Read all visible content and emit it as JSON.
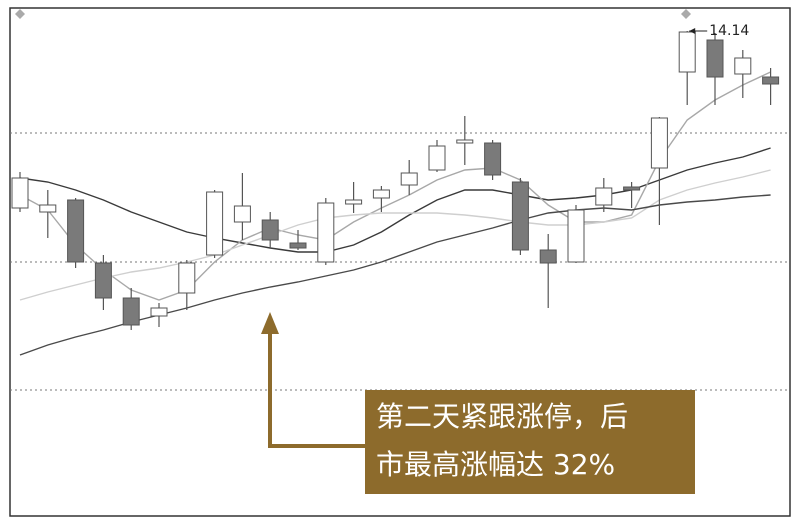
{
  "chart_data": {
    "type": "candlestick",
    "open": [
      10.6,
      10.52,
      10.76,
      9.5,
      8.8,
      8.44,
      8.9,
      9.66,
      10.32,
      10.36,
      9.9,
      9.52,
      10.68,
      10.8,
      11.06,
      11.36,
      11.9,
      11.9,
      11.12,
      9.76,
      9.52,
      10.66,
      11.02,
      11.4,
      13.32,
      13.96,
      13.28,
      13.22
    ],
    "high": [
      11.32,
      10.96,
      10.8,
      9.66,
      9.0,
      8.7,
      9.56,
      10.96,
      11.3,
      10.52,
      10.16,
      10.8,
      11.12,
      11.04,
      11.56,
      11.96,
      12.44,
      11.96,
      11.2,
      10.08,
      10.66,
      11.2,
      11.12,
      12.42,
      14.14,
      14.1,
      13.76,
      13.4
    ],
    "low": [
      10.52,
      10.0,
      9.4,
      8.56,
      8.16,
      8.22,
      8.56,
      9.6,
      9.96,
      9.8,
      9.76,
      9.46,
      10.5,
      10.52,
      10.86,
      11.32,
      11.46,
      11.16,
      9.66,
      8.6,
      9.5,
      10.52,
      10.6,
      10.26,
      12.66,
      12.66,
      12.8,
      12.66
    ],
    "close": [
      11.2,
      10.66,
      9.52,
      8.8,
      8.26,
      8.6,
      9.5,
      10.92,
      10.64,
      9.96,
      9.8,
      10.7,
      10.76,
      10.96,
      11.3,
      11.84,
      11.96,
      11.26,
      9.76,
      9.5,
      10.56,
      11.0,
      10.96,
      12.4,
      14.12,
      13.22,
      13.6,
      13.08
    ],
    "up_color": "#ffffff",
    "down_color": "#7a7a7a",
    "edge_color": "#555555",
    "lines": [
      {
        "color": "#3a3a3a",
        "values": [
          11.2,
          11.12,
          10.96,
          10.76,
          10.52,
          10.32,
          10.12,
          10.0,
          9.9,
          9.8,
          9.72,
          9.72,
          9.86,
          10.12,
          10.46,
          10.76,
          10.96,
          10.96,
          10.86,
          10.76,
          10.8,
          10.86,
          10.96,
          11.16,
          11.36,
          11.5,
          11.62,
          11.8
        ]
      },
      {
        "color": "#a8a8a8",
        "values": [
          10.86,
          10.56,
          9.86,
          9.36,
          8.96,
          8.76,
          8.96,
          9.52,
          9.96,
          10.2,
          10.06,
          9.96,
          10.32,
          10.6,
          10.86,
          11.16,
          11.36,
          11.4,
          11.16,
          10.66,
          10.32,
          10.32,
          10.46,
          11.56,
          12.36,
          12.76,
          13.06,
          13.32
        ]
      },
      {
        "color": "#cfcfcf",
        "values": [
          8.76,
          8.92,
          9.06,
          9.2,
          9.32,
          9.4,
          9.52,
          9.66,
          9.86,
          10.06,
          10.26,
          10.4,
          10.46,
          10.5,
          10.5,
          10.5,
          10.46,
          10.4,
          10.32,
          10.26,
          10.26,
          10.32,
          10.4,
          10.76,
          10.96,
          11.1,
          11.22,
          11.36
        ]
      },
      {
        "color": "#4a4a4a",
        "values": [
          7.66,
          7.86,
          8.02,
          8.16,
          8.32,
          8.46,
          8.6,
          8.76,
          8.9,
          9.02,
          9.12,
          9.24,
          9.36,
          9.52,
          9.72,
          9.92,
          10.06,
          10.2,
          10.36,
          10.5,
          10.56,
          10.6,
          10.56,
          10.66,
          10.72,
          10.76,
          10.82,
          10.86
        ]
      }
    ],
    "ylim": [
      4.46,
      14.6
    ],
    "grid_lines": [
      12.1,
      9.52,
      6.96
    ],
    "annotation": {
      "lines": [
        "第二天紧跟涨停，后",
        "市最高涨幅达 32%"
      ],
      "color": "#8d6b2c"
    }
  }
}
